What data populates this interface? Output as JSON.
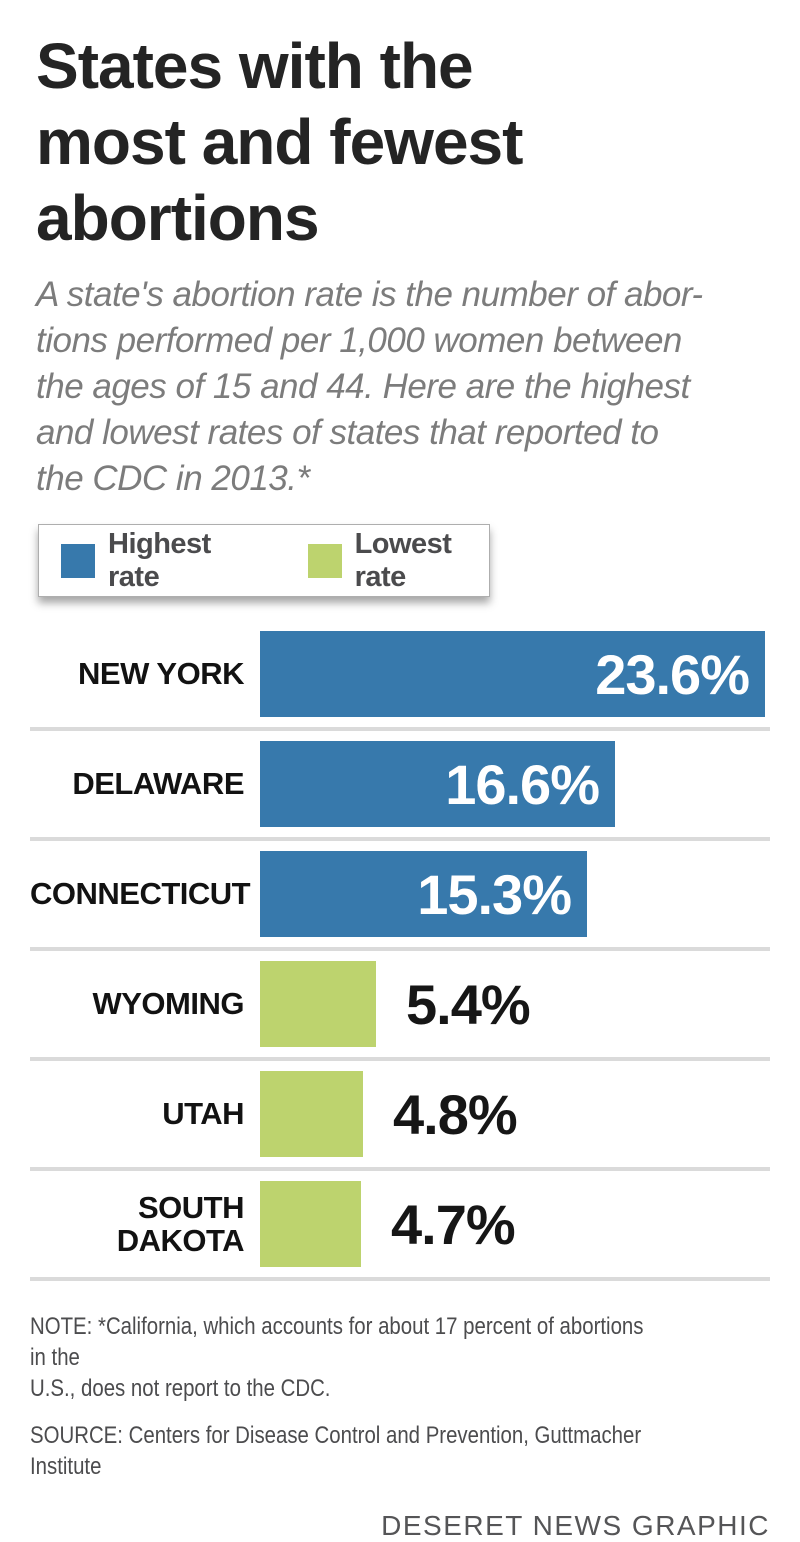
{
  "header": {
    "title": "States with the\nmost and fewest\nabortions",
    "subtitle": "A state's abortion rate is the number of abor-\ntions performed per 1,000 women between\nthe ages of 15 and 44. Here are the highest\nand lowest rates of states that reported to\nthe CDC in 2013.*"
  },
  "legend": {
    "highest_label": "Highest rate",
    "lowest_label": "Lowest rate",
    "highest_color": "#3779ac",
    "lowest_color": "#bdd36e"
  },
  "chart_data": {
    "type": "bar",
    "orientation": "horizontal",
    "title": "States with the most and fewest abortions",
    "unit": "percent",
    "xlim": [
      0,
      23.6
    ],
    "categories": [
      "NEW YORK",
      "DELAWARE",
      "CONNECTICUT",
      "WYOMING",
      "UTAH",
      "SOUTH DAKOTA"
    ],
    "values": [
      23.6,
      16.6,
      15.3,
      5.4,
      4.8,
      4.7
    ],
    "rows": [
      {
        "label": "NEW YORK",
        "value": 23.6,
        "display": "23.6%",
        "group": "highest"
      },
      {
        "label": "DELAWARE",
        "value": 16.6,
        "display": "16.6%",
        "group": "highest"
      },
      {
        "label": "CONNECTICUT",
        "value": 15.3,
        "display": "15.3%",
        "group": "highest"
      },
      {
        "label": "WYOMING",
        "value": 5.4,
        "display": "5.4%",
        "group": "lowest"
      },
      {
        "label": "UTAH",
        "value": 4.8,
        "display": "4.8%",
        "group": "lowest"
      },
      {
        "label": "SOUTH\nDAKOTA",
        "value": 4.7,
        "display": "4.7%",
        "group": "lowest"
      }
    ],
    "legend": {
      "highest": "Highest rate",
      "lowest": "Lowest rate"
    }
  },
  "footer": {
    "note": "NOTE: *California, which accounts for about 17 percent of abortions in the\nU.S., does not report to the CDC.",
    "source": "SOURCE: Centers for Disease Control and Prevention, Guttmacher Institute",
    "credit": "DESERET NEWS GRAPHIC"
  }
}
